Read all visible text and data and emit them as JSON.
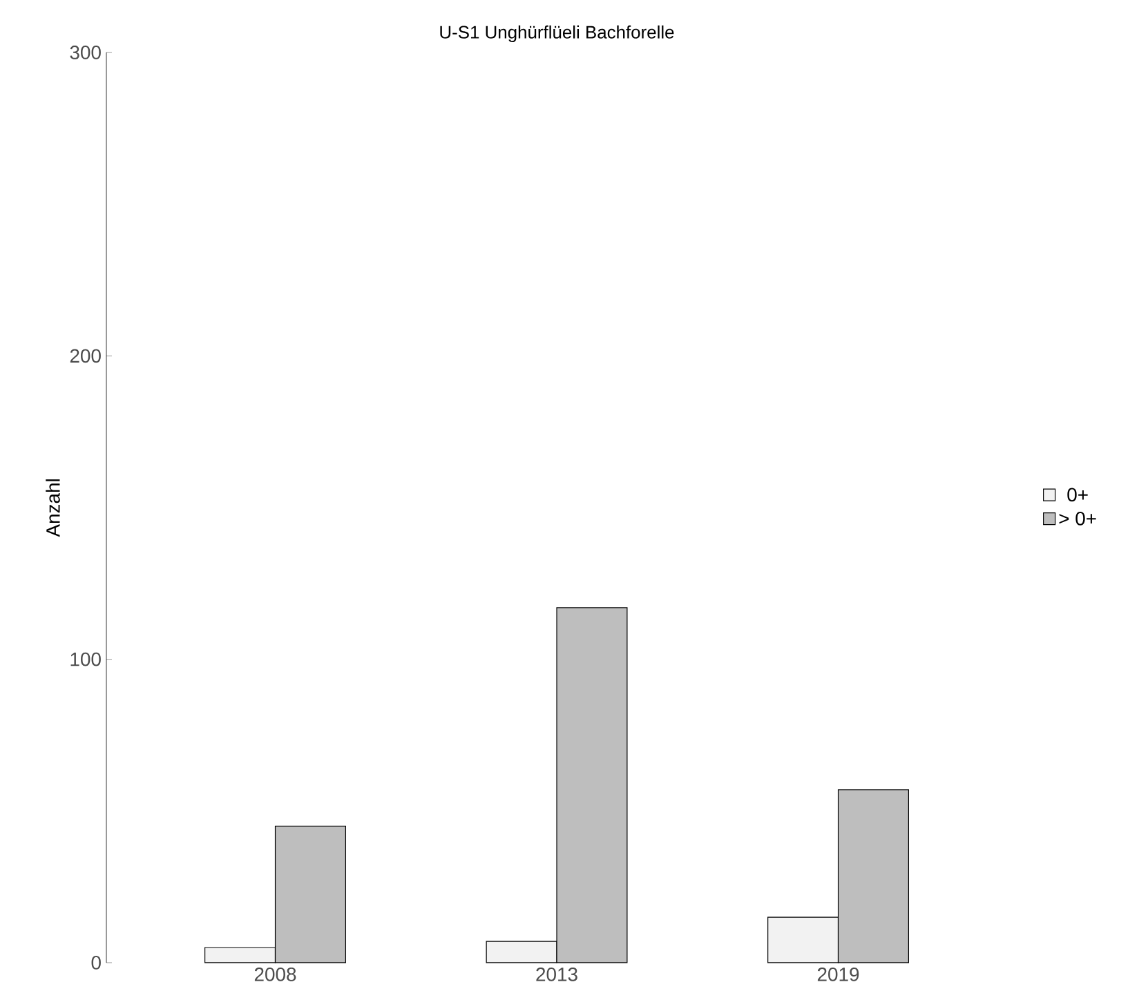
{
  "chart_data": {
    "type": "bar",
    "title": "U-S1 Unghürflüeli Bachforelle",
    "ylabel": "Anzahl",
    "categories": [
      "2008",
      "2013",
      "2019"
    ],
    "series": [
      {
        "name": "0+",
        "color": "#f2f2f2",
        "values": [
          5,
          7,
          15
        ]
      },
      {
        "name": "> 0+",
        "color": "#bebebe",
        "values": [
          45,
          117,
          57
        ]
      }
    ],
    "ylim": [
      0,
      300
    ],
    "yticks": [
      0,
      100,
      200,
      300
    ],
    "legend": "right"
  }
}
